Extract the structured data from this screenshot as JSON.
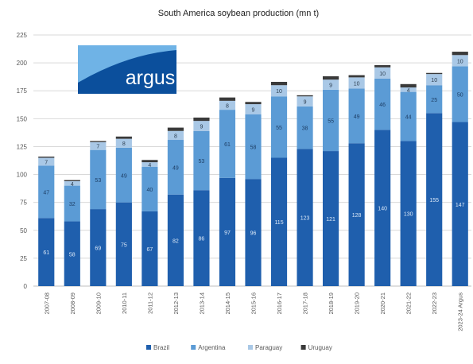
{
  "colors": {
    "brazil": "#1f5fad",
    "argentina": "#5b9bd5",
    "paraguay": "#a9c8e6",
    "uruguay": "#3a3a3a",
    "logo_dark": "#0b4f9c",
    "logo_light": "#6fb3e6",
    "grid": "#d9d9d9",
    "axis_text": "#595959"
  },
  "logo": {
    "text": "argus"
  },
  "chart_data": {
    "type": "bar",
    "stacked": true,
    "title": "South America soybean production (mn t)",
    "xlabel": "",
    "ylabel": "",
    "ylim": [
      0,
      225
    ],
    "yticks": [
      0,
      25,
      50,
      75,
      100,
      125,
      150,
      175,
      200,
      225
    ],
    "grid": true,
    "legend_position": "bottom",
    "categories": [
      "2007-08",
      "2008-09",
      "2009-10",
      "2010-11",
      "2011-12",
      "2012-13",
      "2013-14",
      "2014-15",
      "2015-16",
      "2016-17",
      "2017-18",
      "2018-19",
      "2019-20",
      "2020-21",
      "2021-22",
      "2022-23",
      "2023-24 Argus"
    ],
    "series": [
      {
        "name": "Brazil",
        "color_key": "brazil",
        "values": [
          61,
          58,
          69,
          75,
          67,
          82,
          86,
          97,
          96,
          115,
          123,
          121,
          128,
          140,
          130,
          155,
          147
        ],
        "labels": [
          "61",
          "58",
          "69",
          "75",
          "67",
          "82",
          "86",
          "97",
          "96",
          "115",
          "123",
          "121",
          "128",
          "140",
          "130",
          "155",
          "147"
        ]
      },
      {
        "name": "Argentina",
        "color_key": "argentina",
        "values": [
          47,
          32,
          53,
          49,
          40,
          49,
          53,
          61,
          58,
          55,
          38,
          55,
          49,
          46,
          44,
          25,
          50
        ],
        "labels": [
          "47",
          "32",
          "53",
          "49",
          "40",
          "49",
          "53",
          "61",
          "58",
          "55",
          "38",
          "55",
          "49",
          "46",
          "44",
          "25",
          "50"
        ]
      },
      {
        "name": "Paraguay",
        "color_key": "paraguay",
        "values": [
          7,
          4,
          7,
          8,
          4,
          8,
          9,
          8,
          9,
          10,
          9,
          9,
          10,
          10,
          4,
          10,
          10
        ],
        "labels": [
          "7",
          "4",
          "7",
          "8",
          "4",
          "8",
          "9",
          "8",
          "9",
          "10",
          "9",
          "9",
          "10",
          "10",
          "4",
          "10",
          "10"
        ]
      },
      {
        "name": "Uruguay",
        "color_key": "uruguay",
        "values": [
          1,
          1,
          1,
          2,
          2,
          3,
          3,
          3,
          2,
          3,
          1,
          3,
          2,
          2,
          3,
          1,
          3
        ],
        "labels": [
          "",
          "",
          "",
          "",
          "",
          "",
          "",
          "",
          "",
          "",
          "",
          "",
          "",
          "",
          "",
          "",
          ""
        ]
      }
    ]
  }
}
